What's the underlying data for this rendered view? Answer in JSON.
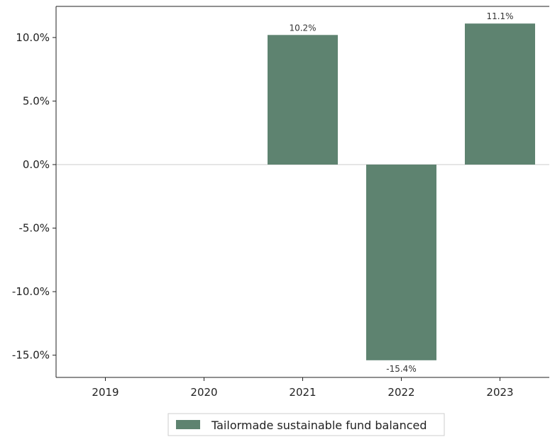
{
  "chart_data": {
    "type": "bar",
    "categories": [
      "2019",
      "2020",
      "2021",
      "2022",
      "2023"
    ],
    "series": [
      {
        "name": "Tailormade sustainable fund balanced",
        "values": [
          null,
          null,
          10.2,
          -15.4,
          11.1
        ],
        "labels": [
          "",
          "",
          "10.2%",
          "-15.4%",
          "11.1%"
        ],
        "color": "#5e8370"
      }
    ],
    "yticks": [
      10,
      5,
      0,
      -5,
      -10,
      -15
    ],
    "ytick_labels": [
      "10.0%",
      "5.0%",
      "0.0%",
      "-5.0%",
      "-10.0%",
      "-15.0%"
    ],
    "ylim": [
      -16.75,
      12.45
    ],
    "grid": false,
    "legend_position": "bottom-center",
    "zero_line_color": "#cccccc"
  }
}
